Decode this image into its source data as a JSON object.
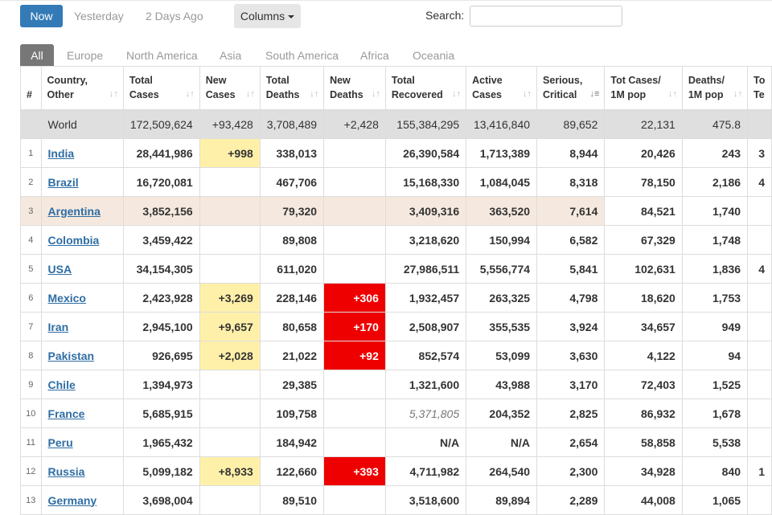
{
  "topbar": {
    "now_label": "Now",
    "yesterday_label": "Yesterday",
    "two_days_label": "2 Days Ago",
    "columns_label": "Columns",
    "search_label": "Search:",
    "search_value": ""
  },
  "tabs": [
    "All",
    "Europe",
    "North America",
    "Asia",
    "South America",
    "Africa",
    "Oceania"
  ],
  "headers": {
    "num": "#",
    "country": [
      "Country,",
      "Other"
    ],
    "total_cases": [
      "Total",
      "Cases"
    ],
    "new_cases": [
      "New",
      "Cases"
    ],
    "total_deaths": [
      "Total",
      "Deaths"
    ],
    "new_deaths": [
      "New",
      "Deaths"
    ],
    "total_recovered": [
      "Total",
      "Recovered"
    ],
    "active_cases": [
      "Active",
      "Cases"
    ],
    "serious": [
      "Serious,",
      "Critical"
    ],
    "tot_cases_1m": [
      "Tot Cases/",
      "1M pop"
    ],
    "deaths_1m": [
      "Deaths/",
      "1M pop"
    ],
    "extra": [
      "To",
      "Te"
    ]
  },
  "world": {
    "country": "World",
    "total_cases": "172,509,624",
    "new_cases": "+93,428",
    "total_deaths": "3,708,489",
    "new_deaths": "+2,428",
    "total_recovered": "155,384,295",
    "active_cases": "13,416,840",
    "serious": "89,652",
    "tot_cases_1m": "22,131",
    "deaths_1m": "475.8",
    "extra": ""
  },
  "rows": [
    {
      "num": "1",
      "country": "India",
      "total_cases": "28,441,986",
      "new_cases": "+998",
      "total_deaths": "338,013",
      "new_deaths": "",
      "total_recovered": "26,390,584",
      "active_cases": "1,713,389",
      "serious": "8,944",
      "tot_cases_1m": "20,426",
      "deaths_1m": "243",
      "extra": "3"
    },
    {
      "num": "2",
      "country": "Brazil",
      "total_cases": "16,720,081",
      "new_cases": "",
      "total_deaths": "467,706",
      "new_deaths": "",
      "total_recovered": "15,168,330",
      "active_cases": "1,084,045",
      "serious": "8,318",
      "tot_cases_1m": "78,150",
      "deaths_1m": "2,186",
      "extra": "4"
    },
    {
      "num": "3",
      "country": "Argentina",
      "total_cases": "3,852,156",
      "new_cases": "",
      "total_deaths": "79,320",
      "new_deaths": "",
      "total_recovered": "3,409,316",
      "active_cases": "363,520",
      "serious": "7,614",
      "tot_cases_1m": "84,521",
      "deaths_1m": "1,740",
      "extra": ""
    },
    {
      "num": "4",
      "country": "Colombia",
      "total_cases": "3,459,422",
      "new_cases": "",
      "total_deaths": "89,808",
      "new_deaths": "",
      "total_recovered": "3,218,620",
      "active_cases": "150,994",
      "serious": "6,582",
      "tot_cases_1m": "67,329",
      "deaths_1m": "1,748",
      "extra": ""
    },
    {
      "num": "5",
      "country": "USA",
      "total_cases": "34,154,305",
      "new_cases": "",
      "total_deaths": "611,020",
      "new_deaths": "",
      "total_recovered": "27,986,511",
      "active_cases": "5,556,774",
      "serious": "5,841",
      "tot_cases_1m": "102,631",
      "deaths_1m": "1,836",
      "extra": "4"
    },
    {
      "num": "6",
      "country": "Mexico",
      "total_cases": "2,423,928",
      "new_cases": "+3,269",
      "total_deaths": "228,146",
      "new_deaths": "+306",
      "total_recovered": "1,932,457",
      "active_cases": "263,325",
      "serious": "4,798",
      "tot_cases_1m": "18,620",
      "deaths_1m": "1,753",
      "extra": ""
    },
    {
      "num": "7",
      "country": "Iran",
      "total_cases": "2,945,100",
      "new_cases": "+9,657",
      "total_deaths": "80,658",
      "new_deaths": "+170",
      "total_recovered": "2,508,907",
      "active_cases": "355,535",
      "serious": "3,924",
      "tot_cases_1m": "34,657",
      "deaths_1m": "949",
      "extra": ""
    },
    {
      "num": "8",
      "country": "Pakistan",
      "total_cases": "926,695",
      "new_cases": "+2,028",
      "total_deaths": "21,022",
      "new_deaths": "+92",
      "total_recovered": "852,574",
      "active_cases": "53,099",
      "serious": "3,630",
      "tot_cases_1m": "4,122",
      "deaths_1m": "94",
      "extra": ""
    },
    {
      "num": "9",
      "country": "Chile",
      "total_cases": "1,394,973",
      "new_cases": "",
      "total_deaths": "29,385",
      "new_deaths": "",
      "total_recovered": "1,321,600",
      "active_cases": "43,988",
      "serious": "3,170",
      "tot_cases_1m": "72,403",
      "deaths_1m": "1,525",
      "extra": ""
    },
    {
      "num": "10",
      "country": "France",
      "total_cases": "5,685,915",
      "new_cases": "",
      "total_deaths": "109,758",
      "new_deaths": "",
      "total_recovered": "5,371,805",
      "active_cases": "204,352",
      "serious": "2,825",
      "tot_cases_1m": "86,932",
      "deaths_1m": "1,678",
      "extra": ""
    },
    {
      "num": "11",
      "country": "Peru",
      "total_cases": "1,965,432",
      "new_cases": "",
      "total_deaths": "184,942",
      "new_deaths": "",
      "total_recovered": "N/A",
      "active_cases": "N/A",
      "serious": "2,654",
      "tot_cases_1m": "58,858",
      "deaths_1m": "5,538",
      "extra": ""
    },
    {
      "num": "12",
      "country": "Russia",
      "total_cases": "5,099,182",
      "new_cases": "+8,933",
      "total_deaths": "122,660",
      "new_deaths": "+393",
      "total_recovered": "4,711,982",
      "active_cases": "264,540",
      "serious": "2,300",
      "tot_cases_1m": "34,928",
      "deaths_1m": "840",
      "extra": "1"
    },
    {
      "num": "13",
      "country": "Germany",
      "total_cases": "3,698,004",
      "new_cases": "",
      "total_deaths": "89,510",
      "new_deaths": "",
      "total_recovered": "3,518,600",
      "active_cases": "89,894",
      "serious": "2,289",
      "tot_cases_1m": "44,008",
      "deaths_1m": "1,065",
      "extra": ""
    }
  ],
  "colors": {
    "accent": "#337ab7",
    "new_cases_bg": "#fff0a9",
    "new_deaths_bg": "#ee0000",
    "highlight_row_bg": "#f5e9df",
    "world_row_bg": "#dfdfdf"
  },
  "icons": {
    "sort": "sort-icon",
    "sort_active": "sort-desc-icon",
    "caret": "caret-down-icon"
  }
}
